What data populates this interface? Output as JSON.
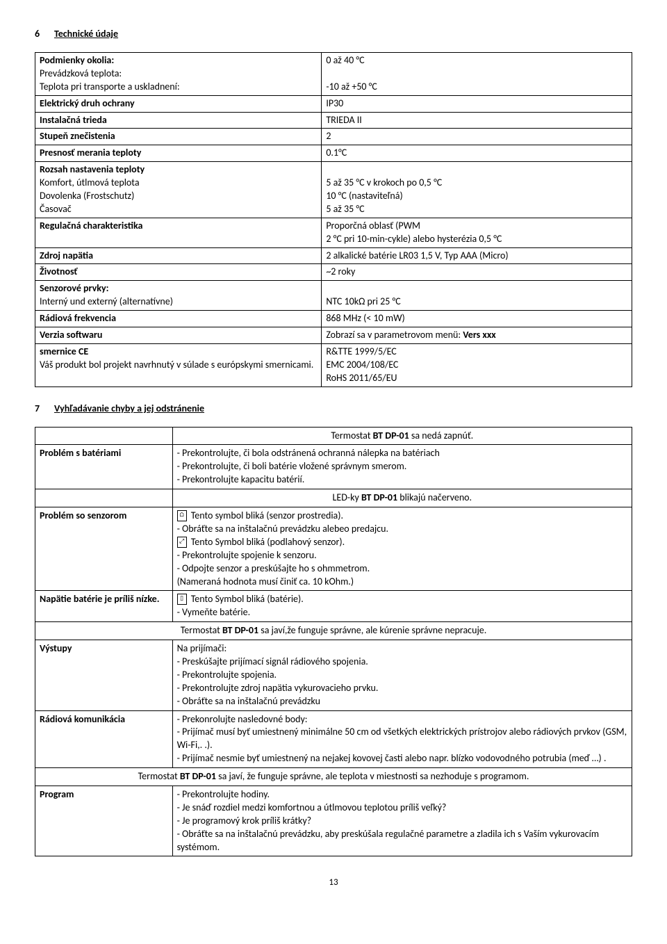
{
  "section6": {
    "num": "6",
    "title": "Technické údaje",
    "rows": [
      {
        "label": "Podmienky okolia:",
        "sub": [
          "Prevádzková teplota:",
          "Teplota pri transporte a uskladnení:"
        ],
        "value": "0 až 40 °C\n\n-10 až +50 °C"
      },
      {
        "label": "Elektrický druh ochrany",
        "value": "IP30"
      },
      {
        "label": "Instalačná trieda",
        "value": "TRIEDA II"
      },
      {
        "label": "Stupeň znečistenia",
        "value": "2"
      },
      {
        "label": "Presnosť merania teploty",
        "value": "0.1°C"
      },
      {
        "label": "Rozsah nastavenia teploty",
        "sub": [
          "Komfort, útlmová teplota",
          "Dovolenka (Frostschutz)",
          "Časovač"
        ],
        "value": "\n5 až 35 °C v krokoch po 0,5 °C\n10 °C (nastaviteľná)\n5 až 35 °C"
      },
      {
        "label": "Regulačná charakteristika",
        "value": "Proporčná oblasť (PWM\n2 °C pri 10-min-cykle) alebo hysterézia 0,5 °C"
      },
      {
        "label": "Zdroj napätia",
        "value": "2 alkalické batérie LR03 1,5 V, Typ AAA (Micro)"
      },
      {
        "label": "Životnosť",
        "value": "~2 roky"
      },
      {
        "label": "Senzorové prvky:",
        "sub": [
          "Interný und externý (alternatívne)"
        ],
        "value": "\nNTC 10kΩ pri 25 °C"
      },
      {
        "label": "Rádiová frekvencia",
        "value": "868 MHz (< 10 mW)"
      },
      {
        "label": "Verzia softwaru",
        "value": "Zobrazí sa v parametrovom menü: Vers xxx",
        "value_bold_suffix": true
      },
      {
        "label": "smernice CE",
        "sub": [
          "Váš produkt bol projekt navrhnutý v súlade s európskymi smernicami."
        ],
        "value": "R&TTE 1999/5/EC\nEMC 2004/108/EC\nRoHS 2011/65/EU"
      }
    ]
  },
  "section7": {
    "num": "7",
    "title": "Vyhľadávanie chyby a jej odstránenie",
    "hdr1": "Termostat BT DP-01 sa nedá zapnúť.",
    "r1_label": "Problém s batériami",
    "r1_val": "- Prekontrolujte, či bola odstránená ochranná nálepka na batériach\n- Prekontrolujte, či boli batérie vložené správnym smerom.\n- Prekontrolujte kapacitu batérií.",
    "hdr2": "LED-ky  BT DP-01 blikajú načerveno.",
    "r2_label": "Problém so senzorom",
    "r2_line1": " Tento symbol bliká (senzor prostredia).",
    "r2_line2": "- Obráťte sa na inštalačnú prevádzku alebeo predajcu.",
    "r2_line3": "  Tento Symbol bliká (podlahový senzor).",
    "r2_line4": "- Prekontrolujte spojenie k senzoru.\n- Odpojte senzor a preskúšajte ho s ohmmetrom.\n(Nameraná hodnota musí činiť  ca. 10 kOhm.)",
    "r3_label": "Napätie batérie je príliš nízke.",
    "r3_line1": " Tento Symbol bliká (batérie).",
    "r3_line2": "- Vymeňte batérie.",
    "hdr3": "Termostat BT DP-01 sa javí,že funguje správne, ale kúrenie správne nepracuje.",
    "r4_label": "Výstupy",
    "r4_val": "Na prijímači:\n- Preskúšajte prijímací signál rádiového spojenia.\n- Prekontrolujte spojenia.\n- Prekontrolujte zdroj napätia vykurovacieho prvku.\n-  Obráťte sa na inštalačnú prevádzku",
    "r5_label": "Rádiová komunikácia",
    "r5_val": "- Prekonrolujte nasledovné body:\n- Prijímač musí byť umiestnený minimálne 50 cm od všetkých elektrických prístrojov alebo rádiových prvkov (GSM, Wi-Fi,. .).\n- Prijímač nesmie byť umiestnený na nejakej kovovej časti alebo napr.  blízko vodovodného potrubia (meď …) .",
    "hdr4": "Termostat  BT DP-01 sa javí, že funguje správne, ale teplota v miestnosti sa nezhoduje s programom.",
    "r6_label": "Program",
    "r6_val": "- Prekontrolujte hodiny.\n- Je snáď rozdiel medzi komfortnou a útlmovou teplotou príliš veľký?\n- Je programový krok príliš krátky?\n-  Obráťte sa na inštalačnú prevádzku, aby preskúšala regulačné parametre a zladila ich s Vaším vykurovacím systémom."
  },
  "pagenum": "13"
}
